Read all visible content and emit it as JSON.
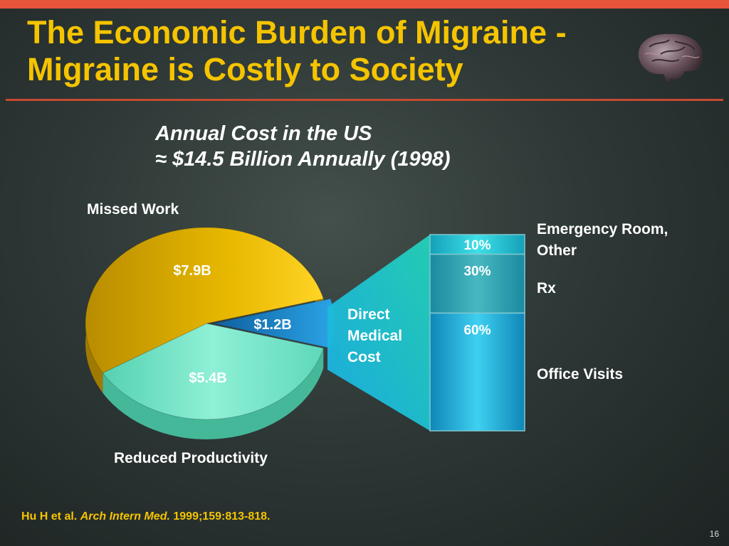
{
  "slide": {
    "title_line1": "The Economic Burden of Migraine -",
    "title_line2": "Migraine is Costly to Society",
    "subtitle_line1": "Annual Cost in the US",
    "subtitle_line2": "≈ $14.5 Billion Annually (1998)",
    "citation_authors": "Hu H et al.",
    "citation_journal": "Arch Intern Med.",
    "citation_ref": "1999;159:813-818.",
    "page_number": "16"
  },
  "colors": {
    "title": "#f5c400",
    "missed_work": "#e8b800",
    "reduced_productivity": "#7fe3c8",
    "direct_medical": "#1e8fd0",
    "bar": "#18b2e0"
  },
  "chart_data": [
    {
      "type": "pie",
      "slices": [
        {
          "name": "Missed Work",
          "value": 7.9,
          "label": "$7.9B"
        },
        {
          "name": "Direct Medical Cost",
          "value": 1.2,
          "label": "$1.2B"
        },
        {
          "name": "Reduced Productivity",
          "value": 5.4,
          "label": "$5.4B"
        }
      ],
      "unit": "billion USD"
    },
    {
      "type": "bar",
      "stacked": true,
      "title": "Direct Medical Cost",
      "segments": [
        {
          "name": "Emergency Room, Other",
          "value": 10,
          "label": "10%"
        },
        {
          "name": "Rx",
          "value": 30,
          "label": "30%"
        },
        {
          "name": "Office Visits",
          "value": 60,
          "label": "60%"
        }
      ],
      "unit": "%"
    }
  ]
}
